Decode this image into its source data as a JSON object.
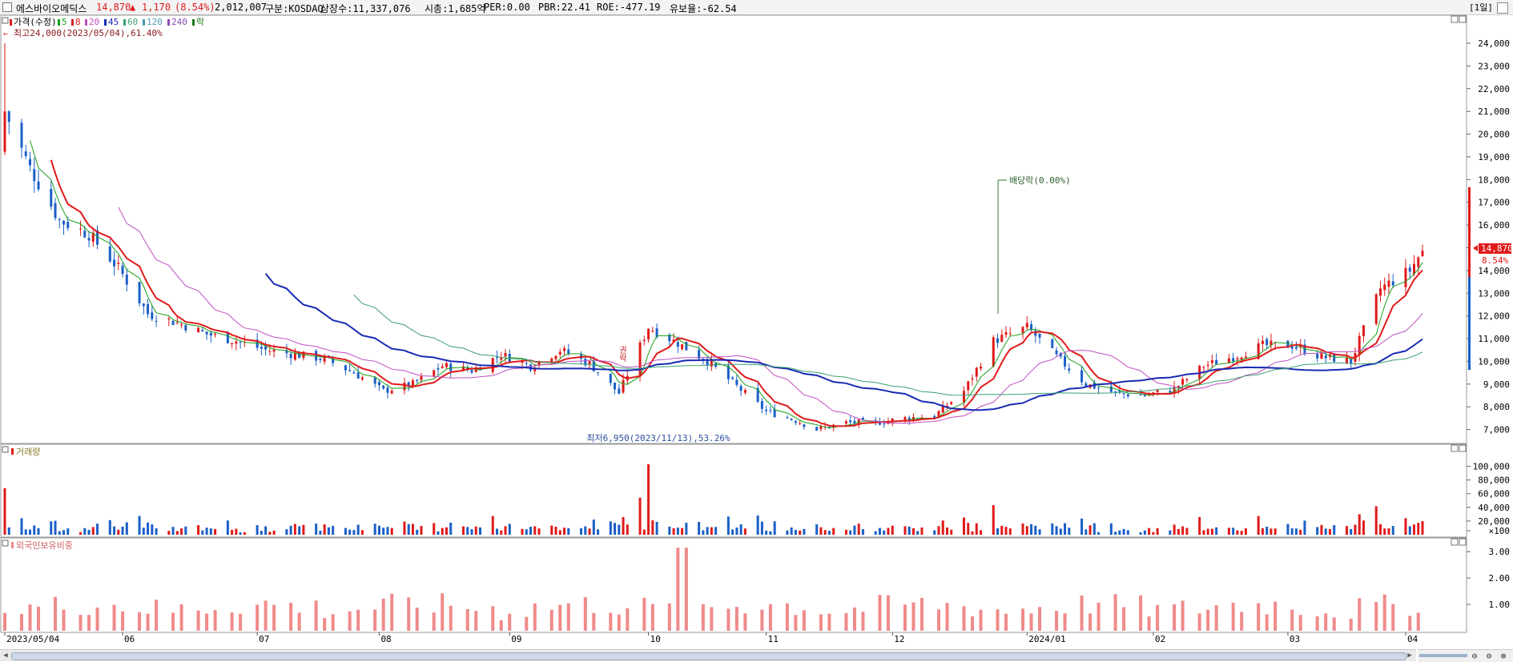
{
  "header": {
    "name": "에스바이오메딕스",
    "price": "14,870",
    "change_arrow": "▲",
    "change": "1,170",
    "change_pct": "(8.54%)",
    "volume": "2,012,007",
    "market": "구분:KOSDAQ",
    "listed_shares": "상장수:11,337,076",
    "market_cap": "시총:1,685억",
    "per": "PER:0.00",
    "pbr": "PBR:22.41",
    "roe": "ROE:-477.19",
    "float_ratio": "유보율:-62.54",
    "period": "[1일]"
  },
  "legend": {
    "price_label": "가격(수정)",
    "ma": [
      {
        "label": "5",
        "color": "#1aa01a"
      },
      {
        "label": "8",
        "color": "#e01a1a"
      },
      {
        "label": "20",
        "color": "#c04fc0"
      },
      {
        "label": "45",
        "color": "#1a2ab4"
      },
      {
        "label": "60",
        "color": "#3aa070"
      },
      {
        "label": "120",
        "color": "#4a9ab4"
      },
      {
        "label": "240",
        "color": "#8a4ab4"
      }
    ],
    "ex_label": "락",
    "ex_color": "#1a7a1a"
  },
  "annotations": {
    "high": "최고24,000(2023/05/04),61.40%",
    "low": "최저6,950(2023/11/13),53.26%",
    "dividend": "배당락(0.00%)",
    "rights": "권락"
  },
  "price_marker": {
    "value": "14,870",
    "pct": "8.54%"
  },
  "volume_panel": {
    "label": "거래량",
    "unit_label": "×100"
  },
  "foreign_panel": {
    "label": "외국인보유비중"
  },
  "colors": {
    "up": "#e01a1a",
    "down": "#1a5fc8",
    "foreign": "#f08a8a",
    "ma45": "#1a2ab4",
    "ma5": "#1aa01a",
    "ma8": "#e01a1a",
    "ma20": "#c04fc0",
    "ma60": "#3aa070"
  },
  "chart_data": [
    {
      "type": "candlestick",
      "title": "가격(수정)",
      "y_ticks": [
        "24,000",
        "23,000",
        "22,000",
        "21,000",
        "20,000",
        "19,000",
        "18,000",
        "17,000",
        "16,000",
        "15,000",
        "14,000",
        "13,000",
        "12,000",
        "11,000",
        "10,000",
        "9,000",
        "8,000",
        "7,000"
      ],
      "ylim": [
        6600,
        24700
      ],
      "x_ticks": [
        "2023/05/04",
        "06",
        "07",
        "08",
        "09",
        "10",
        "11",
        "12",
        "2024/01",
        "02",
        "03",
        "04"
      ],
      "close_trend": [
        [
          "2023/05/04",
          21000
        ],
        [
          "2023/05/10",
          18500
        ],
        [
          "2023/05/17",
          16200
        ],
        [
          "2023/05/24",
          15600
        ],
        [
          "2023/05/31",
          14100
        ],
        [
          "2023/06/07",
          12100
        ],
        [
          "2023/06/14",
          11700
        ],
        [
          "2023/06/21",
          11200
        ],
        [
          "2023/06/28",
          10900
        ],
        [
          "2023/07/05",
          10500
        ],
        [
          "2023/07/12",
          10300
        ],
        [
          "2023/07/19",
          10100
        ],
        [
          "2023/07/26",
          9500
        ],
        [
          "2023/08/02",
          8700
        ],
        [
          "2023/08/09",
          9000
        ],
        [
          "2023/08/16",
          9800
        ],
        [
          "2023/08/23",
          9600
        ],
        [
          "2023/08/30",
          10300
        ],
        [
          "2023/09/06",
          9800
        ],
        [
          "2023/09/13",
          10500
        ],
        [
          "2023/09/20",
          9900
        ],
        [
          "2023/09/27",
          8600
        ],
        [
          "2023/10/04",
          11500
        ],
        [
          "2023/10/11",
          10800
        ],
        [
          "2023/10/18",
          10000
        ],
        [
          "2023/10/25",
          8900
        ],
        [
          "2023/11/01",
          7800
        ],
        [
          "2023/11/08",
          7400
        ],
        [
          "2023/11/13",
          7000
        ],
        [
          "2023/11/20",
          7300
        ],
        [
          "2023/11/27",
          7300
        ],
        [
          "2023/12/04",
          7500
        ],
        [
          "2023/12/11",
          7600
        ],
        [
          "2023/12/18",
          8700
        ],
        [
          "2023/12/25",
          10900
        ],
        [
          "2024/01/02",
          11500
        ],
        [
          "2024/01/09",
          10200
        ],
        [
          "2024/01/16",
          9000
        ],
        [
          "2024/01/23",
          8600
        ],
        [
          "2024/01/30",
          8500
        ],
        [
          "2024/02/06",
          8800
        ],
        [
          "2024/02/13",
          9800
        ],
        [
          "2024/02/20",
          10200
        ],
        [
          "2024/02/27",
          10700
        ],
        [
          "2024/03/05",
          10700
        ],
        [
          "2024/03/12",
          10200
        ],
        [
          "2024/03/19",
          10000
        ],
        [
          "2024/03/26",
          13200
        ],
        [
          "2024/04/02",
          14000
        ],
        [
          "2024/04/05",
          14870
        ]
      ]
    },
    {
      "type": "bar",
      "title": "거래량",
      "y_ticks": [
        "100,000",
        "80,000",
        "60,000",
        "40,000",
        "20,000",
        "×100"
      ],
      "ylim": [
        0,
        110000
      ]
    },
    {
      "type": "bar",
      "title": "외국인보유비중",
      "y_ticks": [
        "3.00",
        "2.00",
        "1.00"
      ],
      "ylim": [
        0,
        3.4
      ]
    }
  ]
}
